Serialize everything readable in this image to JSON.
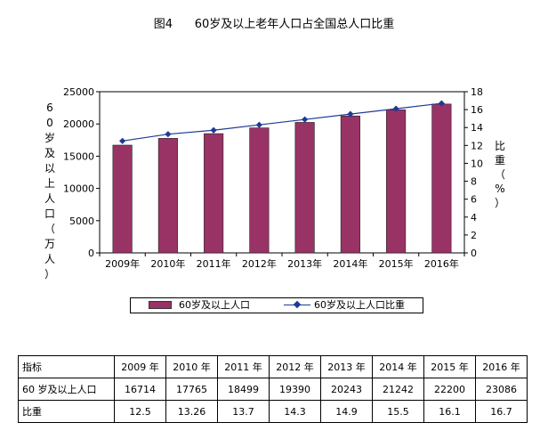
{
  "title": "图4      60岁及以上老年人口占全国总人口比重",
  "chart_data": {
    "type": "bar",
    "title": "图4      60岁及以上老年人口占全国总人口比重",
    "categories": [
      "2009年",
      "2010年",
      "2011年",
      "2012年",
      "2013年",
      "2014年",
      "2015年",
      "2016年"
    ],
    "series": [
      {
        "name": "60岁及以上人口",
        "type": "bar",
        "axis": "left",
        "values": [
          16714,
          17765,
          18499,
          19390,
          20243,
          21242,
          22200,
          23086
        ]
      },
      {
        "name": "60岁及以上人口比重",
        "type": "line",
        "axis": "right",
        "values": [
          12.5,
          13.26,
          13.7,
          14.3,
          14.9,
          15.5,
          16.1,
          16.7
        ]
      }
    ],
    "ylabel": "60岁及以上人口（万人）",
    "y2label": "比重（%）",
    "ylim": [
      0,
      25000
    ],
    "y2lim": [
      0,
      18
    ],
    "yticks": [
      "0",
      "5000",
      "10000",
      "15000",
      "20000",
      "25000"
    ],
    "y2ticks": [
      "0",
      "2",
      "4",
      "6",
      "8",
      "10",
      "12",
      "14",
      "16",
      "18"
    ],
    "grid": false,
    "legend": "bottom",
    "colors": {
      "bar": "#993366",
      "line": "#1f3a93"
    }
  },
  "table": {
    "header_label": "指标",
    "years": [
      "2009 年",
      "2010 年",
      "2011 年",
      "2012 年",
      "2013 年",
      "2014 年",
      "2015 年",
      "2016 年"
    ],
    "rows": [
      {
        "label": "60 岁及以上人口",
        "values": [
          "16714",
          "17765",
          "18499",
          "19390",
          "20243",
          "21242",
          "22200",
          "23086"
        ]
      },
      {
        "label": "比重",
        "values": [
          "12.5",
          "13.26",
          "13.7",
          "14.3",
          "14.9",
          "15.5",
          "16.1",
          "16.7"
        ]
      }
    ]
  }
}
